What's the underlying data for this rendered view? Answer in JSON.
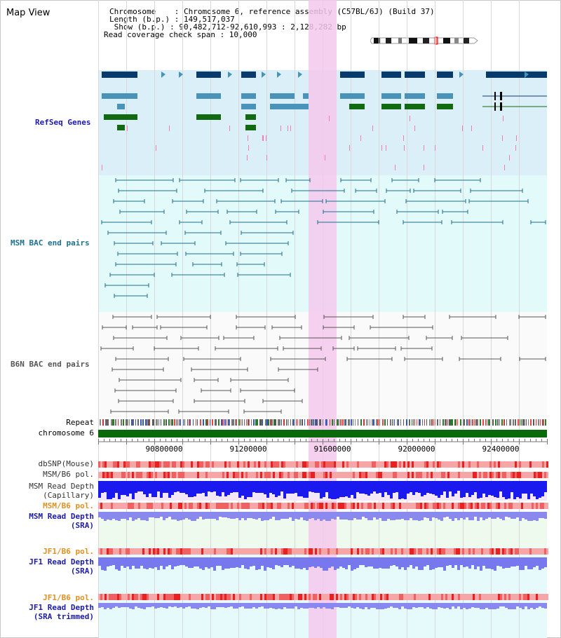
{
  "map_title": "Map View",
  "header": {
    "chromosome_line": "Chromosome    : Chromosome 6, reference assembly (C57BL/6J) (Build 37)",
    "length_line": "Length (b.p.) : 149,517,037",
    "show_line": " Show (b.p.) : 90,482,712-92,610,993 : 2,128,282 bp",
    "coverage_line": "Read coverage check span : 10,000"
  },
  "tracks": {
    "refseq_genes": "RefSeq Genes",
    "msm_bac": "MSM BAC end pairs",
    "b6n_bac": "B6N BAC end pairs",
    "repeat": "Repeat",
    "chromosome": "chromosome 6",
    "dbsnp": "dbSNP(Mouse)",
    "msm_pol_1": "MSM/B6 pol.",
    "msm_depth_cap_1": "MSM Read Depth",
    "msm_depth_cap_2": "(Capillary)",
    "msm_pol_2": "MSM/B6 pol.",
    "msm_depth_sra_1": "MSM Read Depth",
    "msm_depth_sra_2": "(SRA)",
    "jf1_pol_1": "JF1/B6 pol.",
    "jf1_depth_sra_1": "JF1 Read Depth",
    "jf1_depth_sra_2": "(SRA)",
    "jf1_pol_2": "JF1/B6 pol.",
    "jf1_depth_trim_1": "JF1 Read Depth",
    "jf1_depth_trim_2": "(SRA trimmed)"
  },
  "axis": {
    "ticks": [
      "90800000",
      "91200000",
      "91600000",
      "92000000",
      "92400000"
    ]
  },
  "colors": {
    "highlight": "#f5c8ec",
    "refseq_bg": "#dbeff8",
    "msm_bg": "#e2fafa",
    "gene_dark": "#083b6b",
    "gene_mid": "#4a93b8",
    "gene_green": "#116a11",
    "bac_line": "#1f6f8b",
    "b6n_line": "#555555",
    "chrom_bar": "#0a6a0a",
    "label_blue": "#1c1ca8",
    "label_teal": "#207090",
    "label_orange": "#e09020"
  }
}
